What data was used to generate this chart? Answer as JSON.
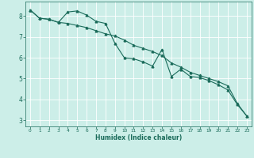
{
  "xlabel": "Humidex (Indice chaleur)",
  "ylabel": "",
  "background_color": "#cceee8",
  "grid_color": "#ffffff",
  "line_color": "#1a6b5a",
  "xlim": [
    -0.5,
    23.5
  ],
  "ylim": [
    2.7,
    8.7
  ],
  "yticks": [
    3,
    4,
    5,
    6,
    7,
    8
  ],
  "xticks": [
    0,
    1,
    2,
    3,
    4,
    5,
    6,
    7,
    8,
    9,
    10,
    11,
    12,
    13,
    14,
    15,
    16,
    17,
    18,
    19,
    20,
    21,
    22,
    23
  ],
  "line1_x": [
    0,
    1,
    2,
    3,
    4,
    5,
    6,
    7,
    8,
    9,
    10,
    11,
    12,
    13,
    14,
    15,
    16,
    17,
    18,
    19,
    20,
    21,
    22,
    23
  ],
  "line1_y": [
    8.3,
    7.9,
    7.85,
    7.7,
    7.65,
    7.55,
    7.45,
    7.3,
    7.15,
    7.05,
    6.85,
    6.6,
    6.45,
    6.3,
    6.1,
    5.75,
    5.55,
    5.3,
    5.15,
    5.0,
    4.85,
    4.65,
    3.8,
    3.2
  ],
  "line2_x": [
    0,
    1,
    2,
    3,
    4,
    5,
    6,
    7,
    8,
    9,
    10,
    11,
    12,
    13,
    14,
    15,
    16,
    17,
    18,
    19,
    20,
    21,
    22,
    23
  ],
  "line2_y": [
    8.3,
    7.9,
    7.85,
    7.7,
    8.2,
    8.25,
    8.05,
    7.75,
    7.65,
    6.7,
    6.0,
    5.95,
    5.8,
    5.6,
    6.4,
    5.1,
    5.45,
    5.1,
    5.05,
    4.9,
    4.7,
    4.45,
    3.75,
    3.2
  ]
}
